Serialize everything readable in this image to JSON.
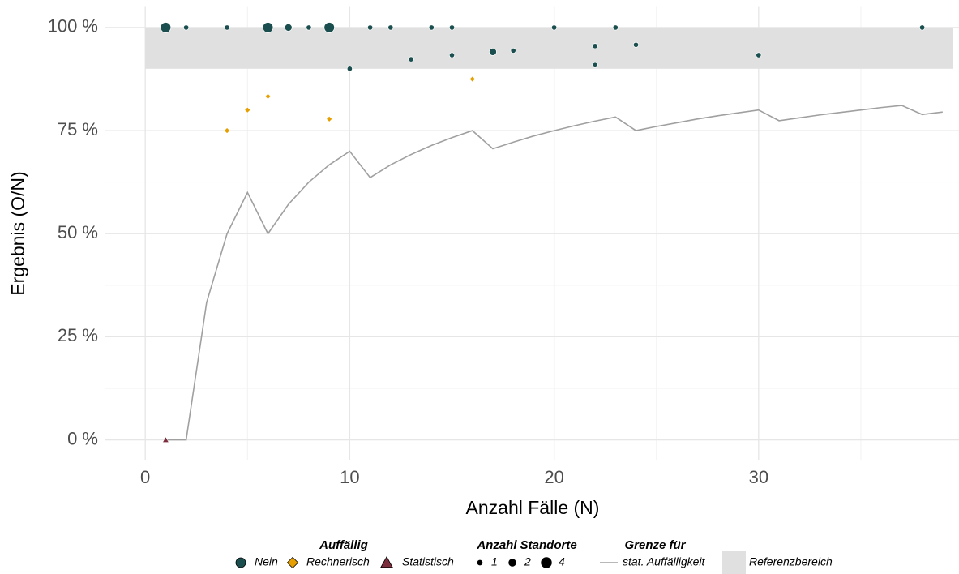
{
  "chart_data": {
    "type": "scatter",
    "xlabel": "Anzahl Fälle (N)",
    "ylabel": "Ergebnis (O/N)",
    "xlim": [
      -1.95,
      39.8
    ],
    "ylim": [
      -5,
      105
    ],
    "xticks": [
      0,
      10,
      20,
      30
    ],
    "xminorticks": [
      5,
      15,
      25,
      35
    ],
    "yticks": [
      {
        "value": 0,
        "label": "0 %"
      },
      {
        "value": 25,
        "label": "25 %"
      },
      {
        "value": 50,
        "label": "50 %"
      },
      {
        "value": 75,
        "label": "75 %"
      },
      {
        "value": 100,
        "label": "100 %"
      }
    ],
    "yminorticks": [
      12.5,
      37.5,
      62.5,
      87.5
    ],
    "grid": true,
    "legend_title": "Auffällig",
    "series": [
      {
        "name": "Nein",
        "color": "#1b4f4f",
        "marker": "circle",
        "x": [
          1,
          2,
          4,
          6,
          7,
          8,
          9,
          10,
          11,
          12,
          13,
          14,
          15,
          15,
          17,
          18,
          20,
          22,
          22,
          23,
          24,
          30,
          38
        ],
        "values": [
          100,
          100,
          100,
          100,
          100,
          100,
          100,
          90,
          100,
          100,
          92.3,
          100,
          100,
          93.3,
          94.1,
          94.4,
          100,
          95.5,
          90.9,
          100,
          95.8,
          93.3,
          100
        ],
        "sizes": [
          4,
          1,
          1,
          4,
          2,
          1,
          4,
          1,
          1,
          1,
          1,
          1,
          1,
          1,
          2,
          1,
          1,
          1,
          1,
          1,
          1,
          1,
          1
        ]
      },
      {
        "name": "Rechnerisch",
        "color": "#e69f00",
        "marker": "diamond",
        "x": [
          4,
          5,
          6,
          9,
          16
        ],
        "values": [
          75,
          80,
          83.3,
          77.8,
          87.5
        ],
        "sizes": [
          1,
          1,
          1,
          1,
          1
        ]
      },
      {
        "name": "Statistisch",
        "color": "#7b2d3b",
        "marker": "triangle",
        "x": [
          1
        ],
        "values": [
          0
        ],
        "sizes": [
          1
        ]
      }
    ],
    "size_legend": {
      "title": "Anzahl Standorte",
      "values": [
        1,
        2,
        4
      ]
    },
    "limit_title": "Grenze für",
    "line": {
      "name": "stat. Auffälligkeit",
      "color": "#a0a0a0",
      "x": [
        1,
        2,
        3,
        4,
        5,
        6,
        7,
        8,
        9,
        10,
        11,
        12,
        13,
        14,
        15,
        16,
        17,
        18,
        19,
        20,
        21,
        22,
        23,
        24,
        25,
        26,
        27,
        28,
        29,
        30,
        31,
        32,
        33,
        34,
        35,
        36,
        37,
        38,
        39
      ],
      "values": [
        0,
        0,
        33.3,
        50,
        60,
        50,
        57.1,
        62.5,
        66.7,
        70,
        63.6,
        66.7,
        69.2,
        71.4,
        73.3,
        75,
        70.6,
        72.2,
        73.7,
        75,
        76.2,
        77.3,
        78.3,
        75,
        76,
        76.9,
        77.8,
        78.6,
        79.3,
        80,
        77.4,
        78.1,
        78.8,
        79.4,
        80,
        80.6,
        81.1,
        78.9,
        79.5
      ]
    },
    "band": {
      "name": "Referenzbereich",
      "color": "#e0e0e0",
      "xlim": [
        0,
        39.5
      ],
      "ylim": [
        90,
        100
      ]
    }
  }
}
